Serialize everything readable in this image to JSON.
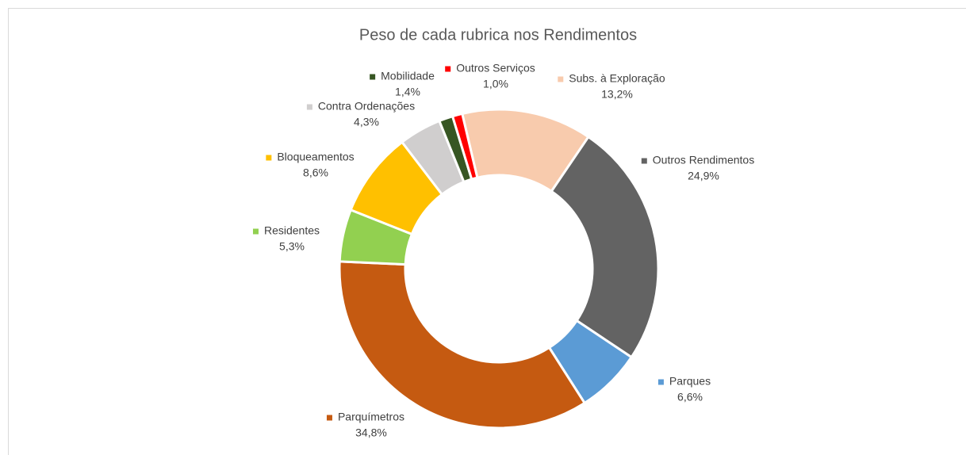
{
  "chart_data": {
    "type": "donut",
    "title": "Peso de cada rubrica nos Rendimentos",
    "categories": [
      "Subs. à Exploração",
      "Outros Rendimentos",
      "Parques",
      "Parquímetros",
      "Residentes",
      "Bloqueamentos",
      "Contra Ordenações",
      "Mobilidade",
      "Outros Serviços"
    ],
    "values": [
      13.2,
      24.9,
      6.6,
      34.8,
      5.3,
      8.6,
      4.3,
      1.4,
      1.0
    ],
    "value_labels": [
      "13,2%",
      "24,9%",
      "6,6%",
      "34,8%",
      "5,3%",
      "8,6%",
      "4,3%",
      "1,4%",
      "1,0%"
    ],
    "colors": [
      "#f8cbad",
      "#636363",
      "#5b9bd5",
      "#c55a11",
      "#92d050",
      "#ffc000",
      "#d0cece",
      "#375623",
      "#ff0000"
    ]
  }
}
